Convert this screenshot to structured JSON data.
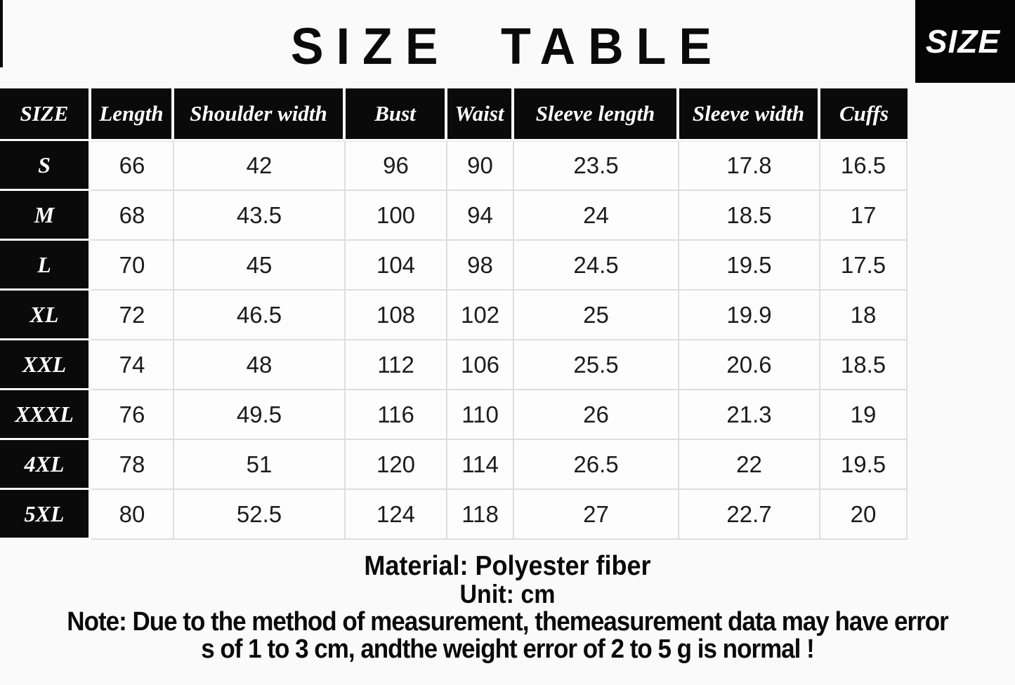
{
  "title": "SIZE TABLE",
  "badge_label": "SIZE",
  "chart_data": {
    "type": "table",
    "title": "SIZE TABLE",
    "columns": [
      "SIZE",
      "Length",
      "Shoulder width",
      "Bust",
      "Waist",
      "Sleeve length",
      "Sleeve width",
      "Cuffs"
    ],
    "rows": [
      [
        "S",
        66,
        42,
        96,
        90,
        23.5,
        17.8,
        16.5
      ],
      [
        "M",
        68,
        43.5,
        100,
        94,
        24,
        18.5,
        17
      ],
      [
        "L",
        70,
        45,
        104,
        98,
        24.5,
        19.5,
        17.5
      ],
      [
        "XL",
        72,
        46.5,
        108,
        102,
        25,
        19.9,
        18
      ],
      [
        "XXL",
        74,
        48,
        112,
        106,
        25.5,
        20.6,
        18.5
      ],
      [
        "XXXL",
        76,
        49.5,
        116,
        110,
        26,
        21.3,
        19
      ],
      [
        "4XL",
        78,
        51,
        120,
        114,
        26.5,
        22,
        19.5
      ],
      [
        "5XL",
        80,
        52.5,
        124,
        118,
        27,
        22.7,
        20
      ]
    ],
    "unit": "cm"
  },
  "footer": {
    "material": "Material:  Polyester fiber",
    "unit": "Unit:  cm",
    "note_line1": "Note:  Due to the method of measurement, themeasurement data may have error",
    "note_line2": "s of 1 to 3 cm, andthe weight error of 2 to 5 g is normal !"
  },
  "colors": {
    "header_bg": "#0a0a0a",
    "badge_bg": "#050505",
    "background": "#fafafa",
    "grid": "#dedede",
    "text": "#1c1c1c",
    "header_text": "#ffffff"
  }
}
